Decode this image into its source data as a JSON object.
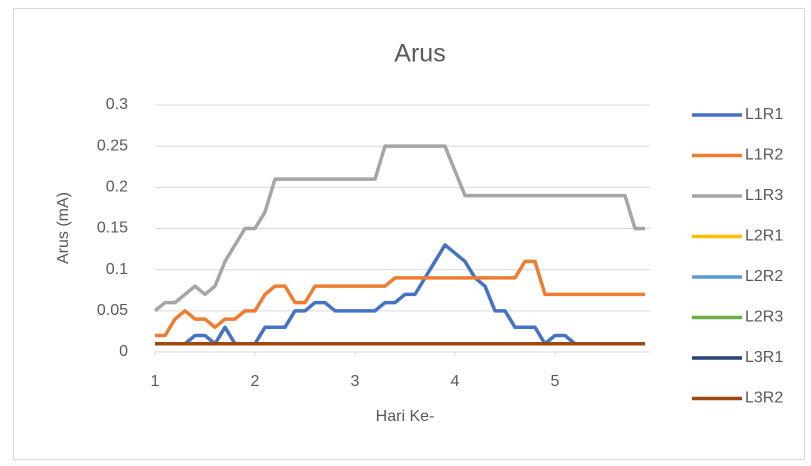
{
  "chart_data": {
    "type": "line",
    "title": "Arus",
    "x_label": "Hari Ke-",
    "y_label": "Arus (mA)",
    "x": [
      1,
      1.1,
      1.2,
      1.3,
      1.4,
      1.5,
      1.6,
      1.7,
      1.8,
      1.9,
      2,
      2.1,
      2.2,
      2.3,
      2.4,
      2.5,
      2.6,
      2.7,
      2.8,
      2.9,
      3,
      3.1,
      3.2,
      3.3,
      3.4,
      3.5,
      3.6,
      3.7,
      3.8,
      3.9,
      4,
      4.1,
      4.2,
      4.3,
      4.4,
      4.5,
      4.6,
      4.7,
      4.8,
      4.9,
      5,
      5.1,
      5.2,
      5.3,
      5.4,
      5.5,
      5.6,
      5.7,
      5.8,
      5.9
    ],
    "xlim": [
      1,
      5.95
    ],
    "xticks": [
      1,
      2,
      3,
      4,
      5
    ],
    "ylim": [
      0,
      0.3
    ],
    "yticks": [
      0,
      0.05,
      0.1,
      0.15,
      0.2,
      0.25,
      0.3
    ],
    "grid": true,
    "legend": "right",
    "series": [
      {
        "name": "L1R1",
        "color": "#4472c4",
        "values": [
          0.01,
          0.01,
          0.01,
          0.01,
          0.02,
          0.02,
          0.01,
          0.03,
          0.01,
          0.01,
          0.01,
          0.03,
          0.03,
          0.03,
          0.05,
          0.05,
          0.06,
          0.06,
          0.05,
          0.05,
          0.05,
          0.05,
          0.05,
          0.06,
          0.06,
          0.07,
          0.07,
          0.09,
          0.11,
          0.13,
          0.12,
          0.11,
          0.09,
          0.08,
          0.05,
          0.05,
          0.03,
          0.03,
          0.03,
          0.01,
          0.02,
          0.02,
          0.01,
          0.01,
          0.01,
          0.01,
          0.01,
          0.01,
          0.01,
          0.01
        ]
      },
      {
        "name": "L1R2",
        "color": "#ed7d31",
        "values": [
          0.02,
          0.02,
          0.04,
          0.05,
          0.04,
          0.04,
          0.03,
          0.04,
          0.04,
          0.05,
          0.05,
          0.07,
          0.08,
          0.08,
          0.06,
          0.06,
          0.08,
          0.08,
          0.08,
          0.08,
          0.08,
          0.08,
          0.08,
          0.08,
          0.09,
          0.09,
          0.09,
          0.09,
          0.09,
          0.09,
          0.09,
          0.09,
          0.09,
          0.09,
          0.09,
          0.09,
          0.09,
          0.11,
          0.11,
          0.07,
          0.07,
          0.07,
          0.07,
          0.07,
          0.07,
          0.07,
          0.07,
          0.07,
          0.07,
          0.07
        ]
      },
      {
        "name": "L1R3",
        "color": "#a5a5a5",
        "values": [
          0.05,
          0.06,
          0.06,
          0.07,
          0.08,
          0.07,
          0.08,
          0.11,
          0.13,
          0.15,
          0.15,
          0.17,
          0.21,
          0.21,
          0.21,
          0.21,
          0.21,
          0.21,
          0.21,
          0.21,
          0.21,
          0.21,
          0.21,
          0.25,
          0.25,
          0.25,
          0.25,
          0.25,
          0.25,
          0.25,
          0.22,
          0.19,
          0.19,
          0.19,
          0.19,
          0.19,
          0.19,
          0.19,
          0.19,
          0.19,
          0.19,
          0.19,
          0.19,
          0.19,
          0.19,
          0.19,
          0.19,
          0.19,
          0.15,
          0.15
        ]
      },
      {
        "name": "L2R1",
        "color": "#ffc000",
        "values": [
          0.01,
          0.01,
          0.01,
          0.01,
          0.01,
          0.01,
          0.01,
          0.01,
          0.01,
          0.01,
          0.01,
          0.01,
          0.01,
          0.01,
          0.01,
          0.01,
          0.01,
          0.01,
          0.01,
          0.01,
          0.01,
          0.01,
          0.01,
          0.01,
          0.01,
          0.01,
          0.01,
          0.01,
          0.01,
          0.01,
          0.01,
          0.01,
          0.01,
          0.01,
          0.01,
          0.01,
          0.01,
          0.01,
          0.01,
          0.01,
          0.01,
          0.01,
          0.01,
          0.01,
          0.01,
          0.01,
          0.01,
          0.01,
          0.01,
          0.01
        ]
      },
      {
        "name": "L2R2",
        "color": "#5b9bd5",
        "values": [
          0.01,
          0.01,
          0.01,
          0.01,
          0.01,
          0.01,
          0.01,
          0.01,
          0.01,
          0.01,
          0.01,
          0.01,
          0.01,
          0.01,
          0.01,
          0.01,
          0.01,
          0.01,
          0.01,
          0.01,
          0.01,
          0.01,
          0.01,
          0.01,
          0.01,
          0.01,
          0.01,
          0.01,
          0.01,
          0.01,
          0.01,
          0.01,
          0.01,
          0.01,
          0.01,
          0.01,
          0.01,
          0.01,
          0.01,
          0.01,
          0.01,
          0.01,
          0.01,
          0.01,
          0.01,
          0.01,
          0.01,
          0.01,
          0.01,
          0.01
        ]
      },
      {
        "name": "L2R3",
        "color": "#70ad47",
        "values": [
          0.01,
          0.01,
          0.01,
          0.01,
          0.01,
          0.01,
          0.01,
          0.01,
          0.01,
          0.01,
          0.01,
          0.01,
          0.01,
          0.01,
          0.01,
          0.01,
          0.01,
          0.01,
          0.01,
          0.01,
          0.01,
          0.01,
          0.01,
          0.01,
          0.01,
          0.01,
          0.01,
          0.01,
          0.01,
          0.01,
          0.01,
          0.01,
          0.01,
          0.01,
          0.01,
          0.01,
          0.01,
          0.01,
          0.01,
          0.01,
          0.01,
          0.01,
          0.01,
          0.01,
          0.01,
          0.01,
          0.01,
          0.01,
          0.01,
          0.01
        ]
      },
      {
        "name": "L3R1",
        "color": "#264478",
        "values": [
          0.01,
          0.01,
          0.01,
          0.01,
          0.01,
          0.01,
          0.01,
          0.01,
          0.01,
          0.01,
          0.01,
          0.01,
          0.01,
          0.01,
          0.01,
          0.01,
          0.01,
          0.01,
          0.01,
          0.01,
          0.01,
          0.01,
          0.01,
          0.01,
          0.01,
          0.01,
          0.01,
          0.01,
          0.01,
          0.01,
          0.01,
          0.01,
          0.01,
          0.01,
          0.01,
          0.01,
          0.01,
          0.01,
          0.01,
          0.01,
          0.01,
          0.01,
          0.01,
          0.01,
          0.01,
          0.01,
          0.01,
          0.01,
          0.01,
          0.01
        ]
      },
      {
        "name": "L3R2",
        "color": "#9e480e",
        "values": [
          0.01,
          0.01,
          0.01,
          0.01,
          0.01,
          0.01,
          0.01,
          0.01,
          0.01,
          0.01,
          0.01,
          0.01,
          0.01,
          0.01,
          0.01,
          0.01,
          0.01,
          0.01,
          0.01,
          0.01,
          0.01,
          0.01,
          0.01,
          0.01,
          0.01,
          0.01,
          0.01,
          0.01,
          0.01,
          0.01,
          0.01,
          0.01,
          0.01,
          0.01,
          0.01,
          0.01,
          0.01,
          0.01,
          0.01,
          0.01,
          0.01,
          0.01,
          0.01,
          0.01,
          0.01,
          0.01,
          0.01,
          0.01,
          0.01,
          0.01
        ]
      }
    ]
  }
}
